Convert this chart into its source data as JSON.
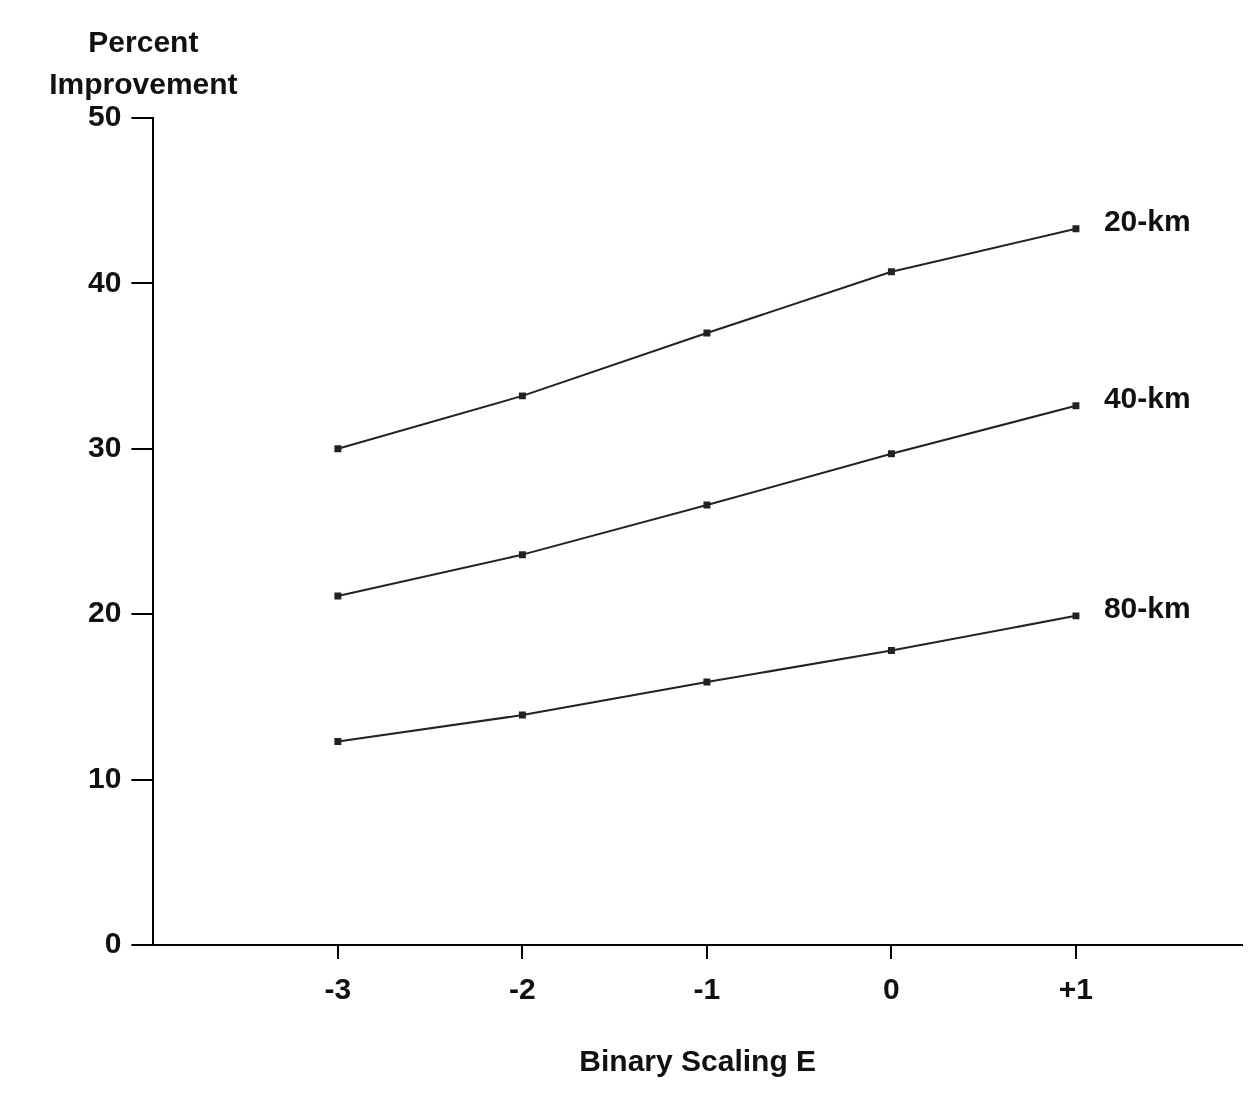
{
  "chart_data": {
    "type": "line",
    "ylabel": "Percent Improvement",
    "xlabel": "Binary Scaling E",
    "x": [
      -3,
      -2,
      -1,
      0,
      1
    ],
    "series": [
      {
        "name": "20-km",
        "color": "#222222",
        "values": [
          30,
          33.2,
          37,
          40.7,
          43.3
        ]
      },
      {
        "name": "40-km",
        "color": "#222222",
        "values": [
          21.1,
          23.6,
          26.6,
          29.7,
          32.6
        ]
      },
      {
        "name": "80-km",
        "color": "#222222",
        "values": [
          12.3,
          13.9,
          15.9,
          17.8,
          19.9
        ]
      }
    ],
    "xlim": [
      -4,
      1.9
    ],
    "xticks": [
      -3,
      -2,
      -1,
      0,
      {
        "value": 1,
        "label": "+1"
      }
    ],
    "ylim": [
      0,
      50
    ],
    "yticks": [
      0,
      10,
      20,
      30,
      40,
      50
    ],
    "marker": "square",
    "line_style": "solid",
    "legend": false,
    "grid": false
  }
}
